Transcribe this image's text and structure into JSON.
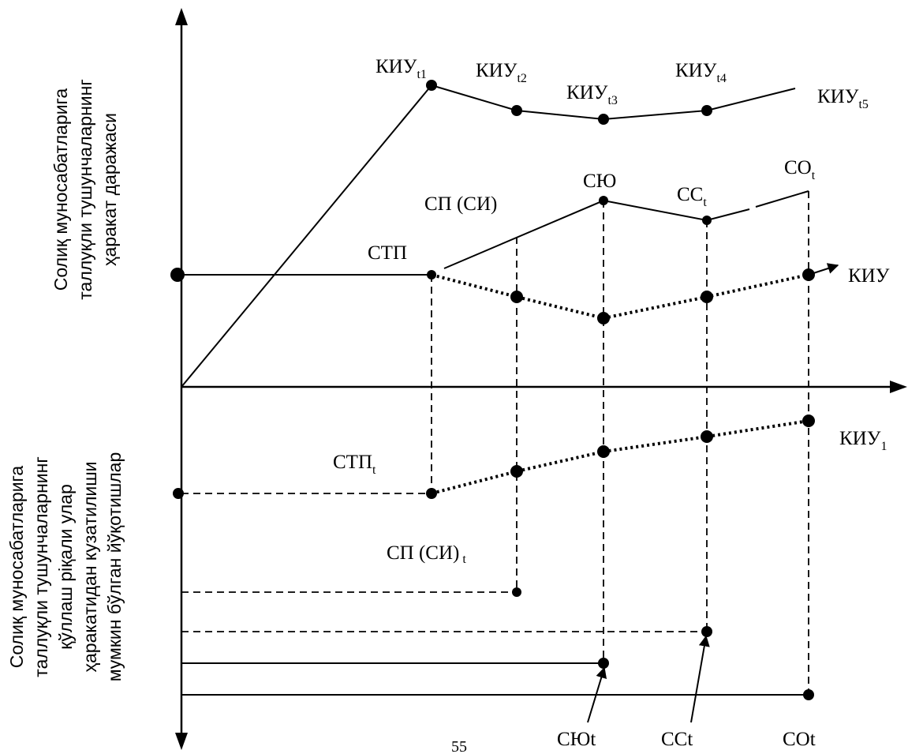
{
  "diagram": {
    "y_axis_title_upper": [
      "Солиқ муносабатларига",
      "таллуқли тушунчаларнинг",
      "ҳаракат даражаси"
    ],
    "y_axis_title_lower": [
      "Солиқ муносабатларига",
      "таллуқли тушунчаларнинг",
      "қўллаш рiқали улар",
      "ҳаракатидан кузатилиши",
      "мумкин бўлган йўқотишлар"
    ],
    "labels": {
      "kiu_t1": {
        "main": "КИУ",
        "sub": "t1"
      },
      "kiu_t2": {
        "main": "КИУ",
        "sub": "t2"
      },
      "kiu_t3": {
        "main": "КИУ",
        "sub": "t3"
      },
      "kiu_t4": {
        "main": "КИУ",
        "sub": "t4"
      },
      "kiu_t5": {
        "main": "КИУ",
        "sub": "t5"
      },
      "sp_si": "СП (СИ)",
      "syu": "СЮ",
      "ss_t": {
        "main": "СС",
        "sub": "t"
      },
      "so_t": {
        "main": "СО",
        "sub": "t"
      },
      "stp": "СТП",
      "kiu": "КИУ",
      "kiu_1": {
        "main": "КИУ",
        "sub": "1"
      },
      "stp_t": {
        "main": "СТП",
        "sub": "t"
      },
      "sp_si_t": {
        "main": "СП (СИ)",
        "sub": "t"
      },
      "bottom_syu_t": "СЮt",
      "bottom_ss_t": "ССt",
      "bottom_so_t": "СОt"
    },
    "page_number": "55"
  }
}
